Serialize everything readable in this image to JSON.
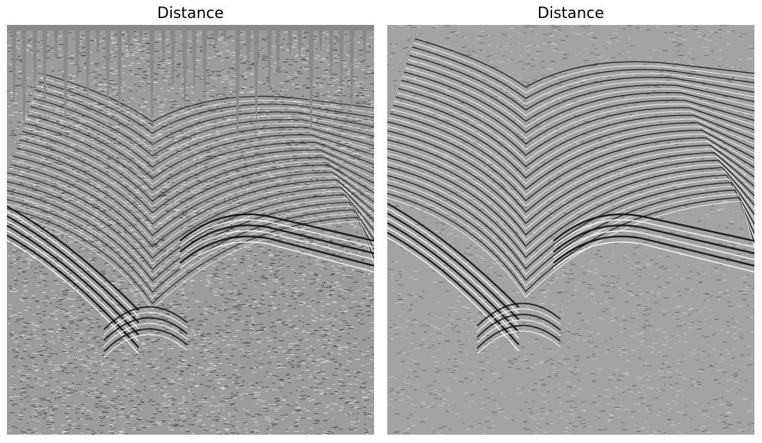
{
  "panels": [
    {
      "id": "left",
      "title": "Distance",
      "background_color": "#9c9c9c",
      "top_fill_color": "#8a8a8a"
    },
    {
      "id": "right",
      "title": "Distance",
      "background_color": "#a3a3a3"
    }
  ]
}
